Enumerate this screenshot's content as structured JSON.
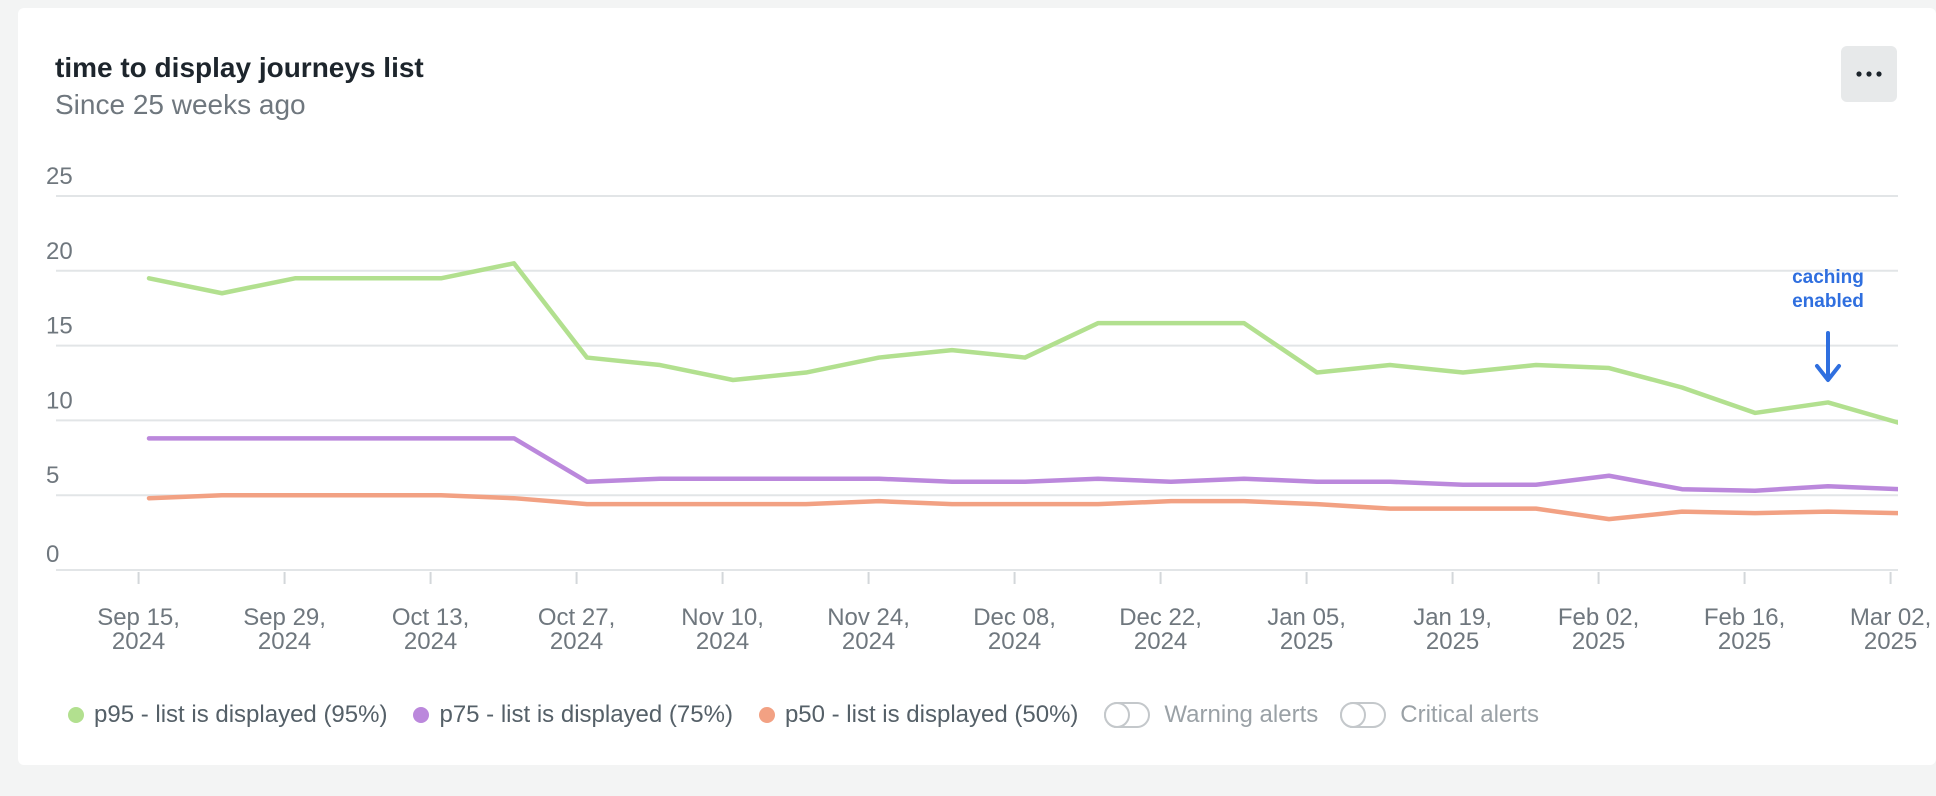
{
  "widget": {
    "title": "time to display journeys list",
    "subtitle": "Since 25 weeks ago",
    "menu_icon": "ellipsis-icon"
  },
  "chart_data": {
    "type": "line",
    "ylim": [
      0,
      25
    ],
    "yticks": [
      0,
      5,
      10,
      15,
      20,
      25
    ],
    "xticks": [
      [
        "Sep 15,",
        "2024"
      ],
      [
        "Sep 29,",
        "2024"
      ],
      [
        "Oct 13,",
        "2024"
      ],
      [
        "Oct 27,",
        "2024"
      ],
      [
        "Nov 10,",
        "2024"
      ],
      [
        "Nov 24,",
        "2024"
      ],
      [
        "Dec 08,",
        "2024"
      ],
      [
        "Dec 22,",
        "2024"
      ],
      [
        "Jan 05,",
        "2025"
      ],
      [
        "Jan 19,",
        "2025"
      ],
      [
        "Feb 02,",
        "2025"
      ],
      [
        "Feb 16,",
        "2025"
      ],
      [
        "Mar 02,",
        "2025"
      ]
    ],
    "x": [
      "2024-09-16",
      "2024-09-23",
      "2024-09-30",
      "2024-10-07",
      "2024-10-14",
      "2024-10-21",
      "2024-10-28",
      "2024-11-04",
      "2024-11-11",
      "2024-11-18",
      "2024-11-25",
      "2024-12-02",
      "2024-12-09",
      "2024-12-16",
      "2024-12-23",
      "2024-12-30",
      "2025-01-06",
      "2025-01-13",
      "2025-01-20",
      "2025-01-27",
      "2025-02-03",
      "2025-02-10",
      "2025-02-17",
      "2025-02-24",
      "2025-03-03"
    ],
    "series": [
      {
        "name": "p95 - list is displayed (95%)",
        "color": "#b2e08f",
        "values": [
          19.5,
          18.5,
          19.5,
          19.5,
          19.5,
          20.5,
          14.2,
          13.7,
          12.7,
          13.2,
          14.2,
          14.7,
          14.2,
          16.5,
          16.5,
          16.5,
          13.2,
          13.7,
          13.2,
          13.7,
          13.5,
          12.2,
          10.5,
          11.2,
          9.8
        ]
      },
      {
        "name": "p75 - list is displayed (75%)",
        "color": "#bb88dc",
        "values": [
          8.8,
          8.8,
          8.8,
          8.8,
          8.8,
          8.8,
          5.9,
          6.1,
          6.1,
          6.1,
          6.1,
          5.9,
          5.9,
          6.1,
          5.9,
          6.1,
          5.9,
          5.9,
          5.7,
          5.7,
          6.3,
          5.4,
          5.3,
          5.6,
          5.4
        ]
      },
      {
        "name": "p50 - list is displayed (50%)",
        "color": "#f2a183",
        "values": [
          4.8,
          5.0,
          5.0,
          5.0,
          5.0,
          4.8,
          4.4,
          4.4,
          4.4,
          4.4,
          4.6,
          4.4,
          4.4,
          4.4,
          4.6,
          4.6,
          4.4,
          4.1,
          4.1,
          4.1,
          3.4,
          3.9,
          3.8,
          3.9,
          3.8
        ]
      }
    ],
    "annotation": {
      "text_line1": "caching",
      "text_line2": "enabled",
      "x": "2025-02-24",
      "color": "#2f6fdf"
    },
    "grid": true,
    "legend_position": "bottom"
  },
  "alerts": {
    "warning_label": "Warning alerts",
    "critical_label": "Critical alerts",
    "warning_on": false,
    "critical_on": false
  }
}
